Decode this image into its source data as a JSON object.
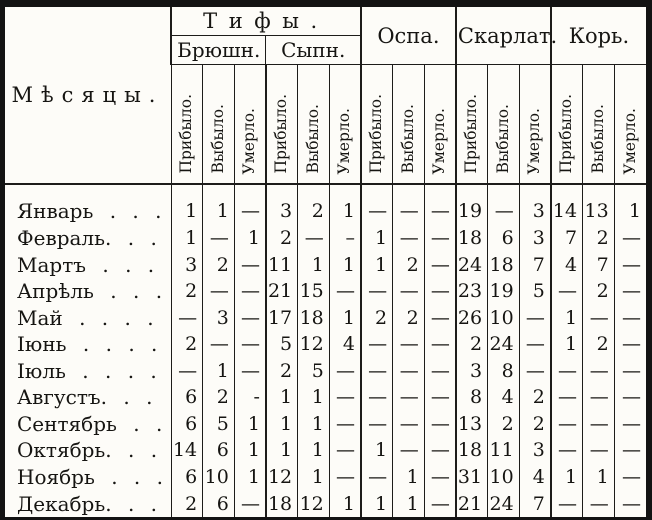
{
  "table": {
    "corner_header": "Мѣсяцы.",
    "groups": [
      {
        "label": "Тифы.",
        "subgroups": [
          {
            "label": "Брюшн."
          },
          {
            "label": "Сыпн."
          }
        ]
      },
      {
        "label": "Оспа."
      },
      {
        "label": "Скарлат."
      },
      {
        "label": "Корь."
      }
    ],
    "measure_labels": [
      "Прибыло.",
      "Выбыло.",
      "Умерло."
    ],
    "rows": [
      {
        "month": "Январь . . .",
        "values": [
          "1",
          "1",
          "—",
          "3",
          "2",
          "1",
          "—",
          "—",
          "—",
          "19",
          "—",
          "3",
          "14",
          "13",
          "1"
        ]
      },
      {
        "month": "Февраль. . .",
        "values": [
          "1",
          "—",
          "1",
          "2",
          "—",
          "–",
          "1",
          "—",
          "—",
          "18",
          "6",
          "3",
          "7",
          "2",
          "—"
        ]
      },
      {
        "month": "Мартъ . . .",
        "values": [
          "3",
          "2",
          "—",
          "11",
          "1",
          "1",
          "1",
          "2",
          "—",
          "24",
          "18",
          "7",
          "4",
          "7",
          "—"
        ]
      },
      {
        "month": "Апрѣль . . .",
        "values": [
          "2",
          "—",
          "—",
          "21",
          "15",
          "—",
          "—",
          "—",
          "—",
          "23",
          "19",
          "5",
          "—",
          "2",
          "—"
        ]
      },
      {
        "month": "Май . . . .",
        "values": [
          "—",
          "3",
          "—",
          "17",
          "18",
          "1",
          "2",
          "2",
          "—",
          "26",
          "10",
          "—",
          "1",
          "—",
          "—"
        ]
      },
      {
        "month": "Іюнь . . . .",
        "values": [
          "2",
          "—",
          "—",
          "5",
          "12",
          "4",
          "—",
          "—",
          "—",
          "2",
          "24",
          "—",
          "1",
          "2",
          "—"
        ]
      },
      {
        "month": "Іюль . . . .",
        "values": [
          "—",
          "1",
          "—",
          "2",
          "5",
          "—",
          "—",
          "—",
          "—",
          "3",
          "8",
          "—",
          "—",
          "—",
          "—"
        ]
      },
      {
        "month": "Августъ. . .",
        "values": [
          "6",
          "2",
          "-",
          "1",
          "1",
          "—",
          "—",
          "—",
          "—",
          "8",
          "4",
          "2",
          "—",
          "—",
          "—"
        ]
      },
      {
        "month": "Сентябрь . .",
        "values": [
          "6",
          "5",
          "1",
          "1",
          "1",
          "—",
          "—",
          "—",
          "—",
          "13",
          "2",
          "2",
          "—",
          "—",
          "—"
        ]
      },
      {
        "month": "Октябрь. . .",
        "values": [
          "14",
          "6",
          "1",
          "1",
          "1",
          "—",
          "1",
          "—",
          "—",
          "18",
          "11",
          "3",
          "—",
          "—",
          "—"
        ]
      },
      {
        "month": "Ноябрь . . .",
        "values": [
          "6",
          "10",
          "1",
          "12",
          "1",
          "—",
          "—",
          "1",
          "—",
          "31",
          "10",
          "4",
          "1",
          "1",
          "—"
        ]
      },
      {
        "month": "Декабрь. . .",
        "values": [
          "2",
          "6",
          "—",
          "18",
          "12",
          "1",
          "1",
          "1",
          "—",
          "21",
          "24",
          "7",
          "—",
          "—",
          "—"
        ]
      }
    ]
  }
}
